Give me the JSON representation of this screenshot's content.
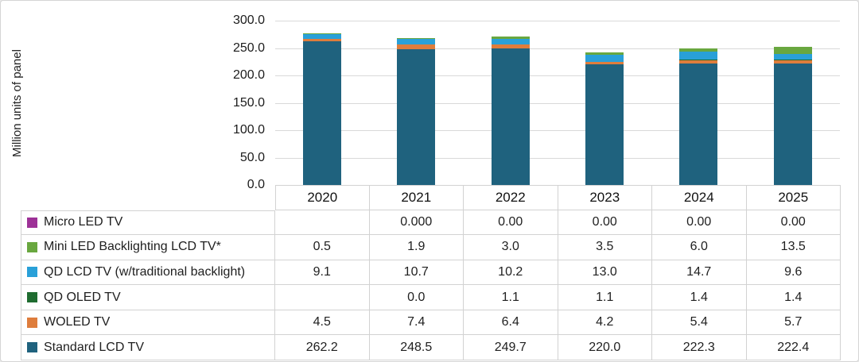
{
  "chart_data": {
    "type": "bar",
    "stacked": true,
    "title": "",
    "ylabel": "Million units of panel",
    "xlabel": "",
    "ylim": [
      0,
      300
    ],
    "ytick_step": 50,
    "yticks": [
      "300.0",
      "250.0",
      "200.0",
      "150.0",
      "100.0",
      "50.0",
      "0.0"
    ],
    "grid": true,
    "legend_position": "table-left",
    "categories": [
      "2020",
      "2021",
      "2022",
      "2023",
      "2024",
      "2025"
    ],
    "series": [
      {
        "name": "Standard LCD TV",
        "color": "#1f627e",
        "values": [
          262.2,
          248.5,
          249.7,
          220.0,
          222.3,
          222.4
        ],
        "display": [
          "262.2",
          "248.5",
          "249.7",
          "220.0",
          "222.3",
          "222.4"
        ]
      },
      {
        "name": "WOLED TV",
        "color": "#de7d3c",
        "values": [
          4.5,
          7.4,
          6.4,
          4.2,
          5.4,
          5.7
        ],
        "display": [
          "4.5",
          "7.4",
          "6.4",
          "4.2",
          "5.4",
          "5.7"
        ]
      },
      {
        "name": "QD OLED TV",
        "color": "#1f6c30",
        "values": [
          0,
          0.0,
          1.1,
          1.1,
          1.4,
          1.4
        ],
        "display": [
          "",
          "0.0",
          "1.1",
          "1.1",
          "1.4",
          "1.4"
        ]
      },
      {
        "name": "QD LCD TV (w/traditional backlight)",
        "color": "#29a0d8",
        "values": [
          9.1,
          10.7,
          10.2,
          13.0,
          14.7,
          9.6
        ],
        "display": [
          "9.1",
          "10.7",
          "10.2",
          "13.0",
          "14.7",
          "9.6"
        ]
      },
      {
        "name": "Mini LED Backlighting LCD TV*",
        "color": "#69a73f",
        "values": [
          0.5,
          1.9,
          3.0,
          3.5,
          6.0,
          13.5
        ],
        "display": [
          "0.5",
          "1.9",
          "3.0",
          "3.5",
          "6.0",
          "13.5"
        ]
      },
      {
        "name": "Micro LED TV",
        "color": "#9d3197",
        "values": [
          0,
          0,
          0,
          0,
          0,
          0
        ],
        "display": [
          "",
          "0.000",
          "0.00",
          "0.00",
          "0.00",
          "0.00"
        ]
      }
    ]
  }
}
